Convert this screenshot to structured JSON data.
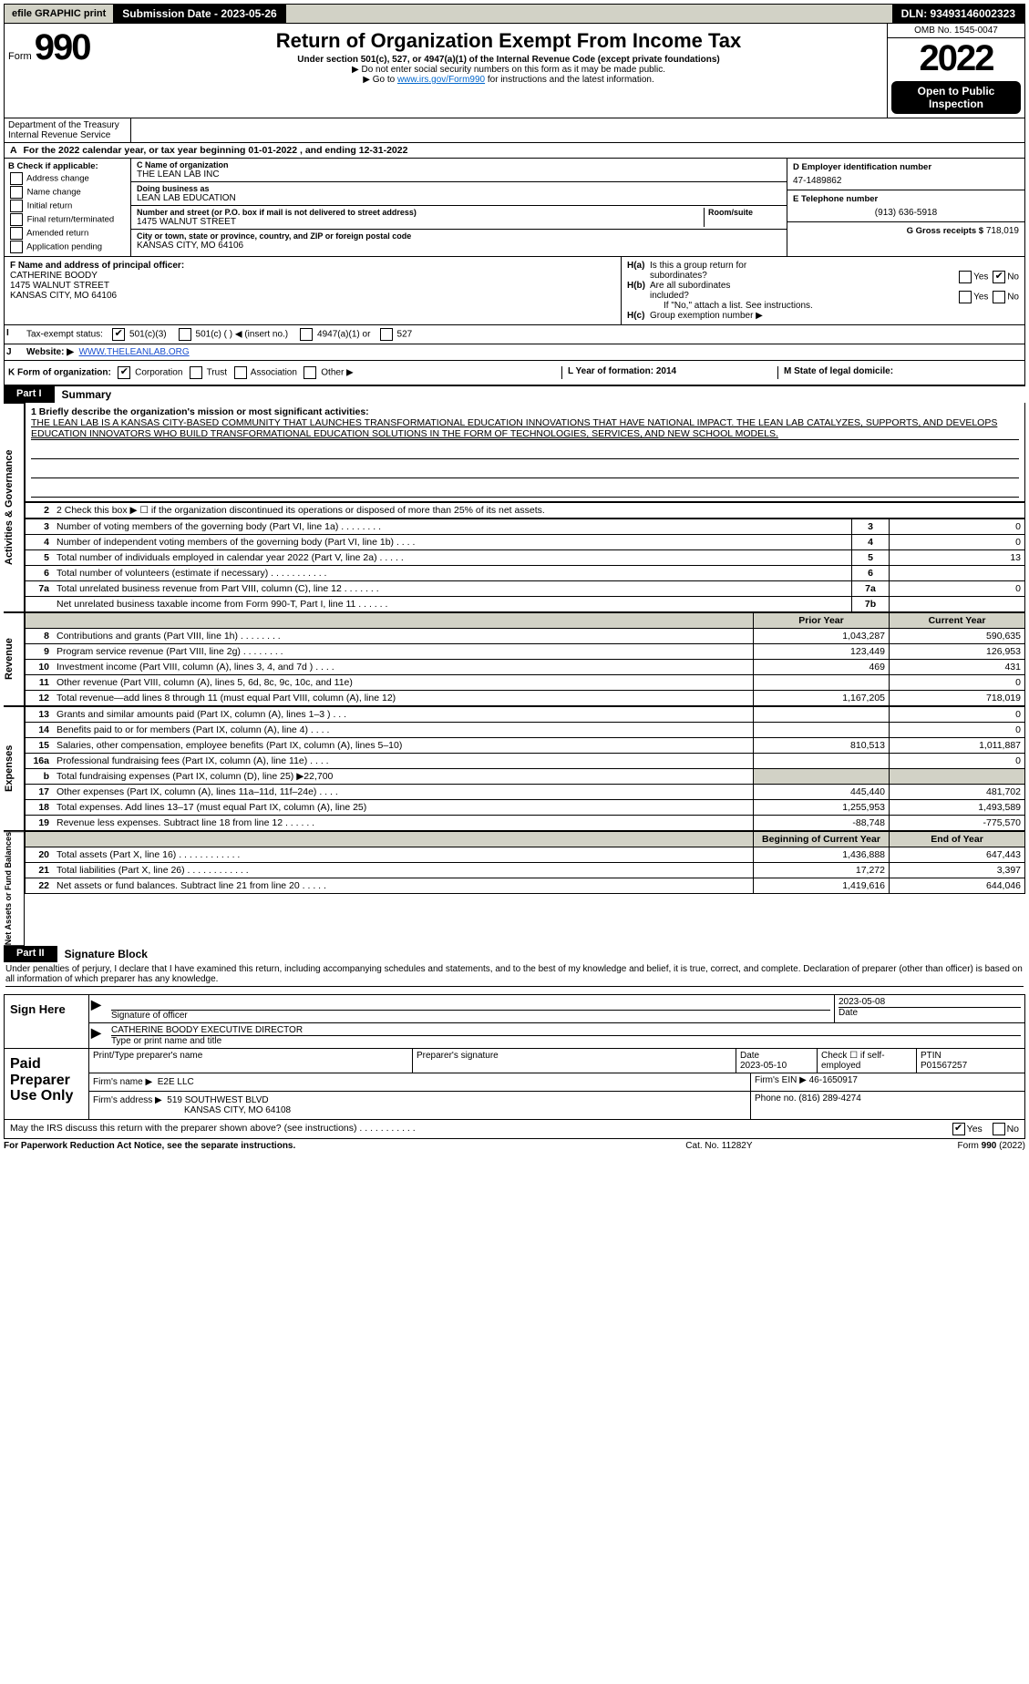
{
  "topbar": {
    "efile": "efile GRAPHIC print",
    "sub_label": "Submission Date - 2023-05-26",
    "dln_label": "DLN: 93493146002323"
  },
  "header": {
    "form_word": "Form",
    "form_num": "990",
    "title": "Return of Organization Exempt From Income Tax",
    "subtitle": "Under section 501(c), 527, or 4947(a)(1) of the Internal Revenue Code (except private foundations)",
    "note1": "▶ Do not enter social security numbers on this form as it may be made public.",
    "note2_pre": "▶ Go to ",
    "note2_link": "www.irs.gov/Form990",
    "note2_post": " for instructions and the latest information.",
    "omb": "OMB No. 1545-0047",
    "year": "2022",
    "public": "Open to Public Inspection",
    "dept": "Department of the Treasury",
    "irs": "Internal Revenue Service"
  },
  "a": {
    "line": "For the 2022 calendar year, or tax year beginning 01-01-2022    , and ending 12-31-2022",
    "a_label": "A"
  },
  "b": {
    "hdr": "B Check if applicable:",
    "opts": [
      "Address change",
      "Name change",
      "Initial return",
      "Final return/terminated",
      "Amended return",
      "Application pending"
    ]
  },
  "c": {
    "name_lbl": "C Name of organization",
    "name": "THE LEAN LAB INC",
    "dba_lbl": "Doing business as",
    "dba": "LEAN LAB EDUCATION",
    "addr_lbl": "Number and street (or P.O. box if mail is not delivered to street address)",
    "room_lbl": "Room/suite",
    "addr": "1475 WALNUT STREET",
    "city_lbl": "City or town, state or province, country, and ZIP or foreign postal code",
    "city": "KANSAS CITY, MO  64106"
  },
  "d": {
    "lbl": "D Employer identification number",
    "val": "47-1489862"
  },
  "e": {
    "lbl": "E Telephone number",
    "val": "(913) 636-5918"
  },
  "g": {
    "lbl": "G Gross receipts $",
    "val": "718,019"
  },
  "f": {
    "lbl": "F  Name and address of principal officer:",
    "name": "CATHERINE BOODY",
    "addr1": "1475 WALNUT STREET",
    "addr2": "KANSAS CITY, MO  64106"
  },
  "h": {
    "a_lbl": "H(a)  Is this a group return for subordinates?",
    "yes": "Yes",
    "no": "No",
    "b_lbl": "H(b)  Are all subordinates included?",
    "b_note": "If \"No,\" attach a list. See instructions.",
    "c_lbl": "H(c)  Group exemption number ▶"
  },
  "i": {
    "lbl": "Tax-exempt status:",
    "o1": "501(c)(3)",
    "o2": "501(c) (   ) ◀ (insert no.)",
    "o3": "4947(a)(1) or",
    "o4": "527"
  },
  "j": {
    "lbl": "Website: ▶",
    "val": "WWW.THELEANLAB.ORG"
  },
  "k": {
    "lbl": "K Form of organization:",
    "opts": [
      "Corporation",
      "Trust",
      "Association",
      "Other ▶"
    ]
  },
  "l": {
    "lbl": "L Year of formation: 2014"
  },
  "m": {
    "lbl": "M State of legal domicile:"
  },
  "part1": {
    "tab": "Part I",
    "title": "Summary",
    "q1_lbl": "1  Briefly describe the organization's mission or most significant activities:",
    "q1_text": "THE LEAN LAB IS A KANSAS CITY-BASED COMMUNITY THAT LAUNCHES TRANSFORMATIONAL EDUCATION INNOVATIONS THAT HAVE NATIONAL IMPACT. THE LEAN LAB CATALYZES, SUPPORTS, AND DEVELOPS EDUCATION INNOVATORS WHO BUILD TRANSFORMATIONAL EDUCATION SOLUTIONS IN THE FORM OF TECHNOLOGIES, SERVICES, AND NEW SCHOOL MODELS.",
    "q2": "2  Check this box ▶ ☐  if the organization discontinued its operations or disposed of more than 25% of its net assets.",
    "rows_gov": [
      {
        "n": "3",
        "d": "Number of voting members of the governing body (Part VI, line 1a)   .    .    .    .    .    .    .    .",
        "box": "3",
        "v": "0"
      },
      {
        "n": "4",
        "d": "Number of independent voting members of the governing body (Part VI, line 1b)    .    .    .    .",
        "box": "4",
        "v": "0"
      },
      {
        "n": "5",
        "d": "Total number of individuals employed in calendar year 2022 (Part V, line 2a)   .    .    .    .    .",
        "box": "5",
        "v": "13"
      },
      {
        "n": "6",
        "d": "Total number of volunteers (estimate if necessary)    .    .    .    .    .    .    .    .    .    .    .",
        "box": "6",
        "v": ""
      },
      {
        "n": "7a",
        "d": "Total unrelated business revenue from Part VIII, column (C), line 12   .    .    .    .    .    .    .",
        "box": "7a",
        "v": "0"
      },
      {
        "n": "",
        "d": "Net unrelated business taxable income from Form 990-T, Part I, line 11    .    .    .    .    .    .",
        "box": "7b",
        "v": ""
      }
    ],
    "hdr_prior": "Prior Year",
    "hdr_curr": "Current Year",
    "side_gov": "Activities & Governance",
    "side_rev": "Revenue",
    "side_exp": "Expenses",
    "side_net": "Net Assets or Fund Balances",
    "rows_rev": [
      {
        "n": "8",
        "d": "Contributions and grants (Part VIII, line 1h)    .    .    .    .    .    .    .    .",
        "p": "1,043,287",
        "c": "590,635"
      },
      {
        "n": "9",
        "d": "Program service revenue (Part VIII, line 2g)   .    .    .    .    .    .    .    .",
        "p": "123,449",
        "c": "126,953"
      },
      {
        "n": "10",
        "d": "Investment income (Part VIII, column (A), lines 3, 4, and 7d )   .    .    .    .",
        "p": "469",
        "c": "431"
      },
      {
        "n": "11",
        "d": "Other revenue (Part VIII, column (A), lines 5, 6d, 8c, 9c, 10c, and 11e)",
        "p": "",
        "c": "0"
      },
      {
        "n": "12",
        "d": "Total revenue—add lines 8 through 11 (must equal Part VIII, column (A), line 12)",
        "p": "1,167,205",
        "c": "718,019"
      }
    ],
    "rows_exp": [
      {
        "n": "13",
        "d": "Grants and similar amounts paid (Part IX, column (A), lines 1–3 )   .    .    .",
        "p": "",
        "c": "0"
      },
      {
        "n": "14",
        "d": "Benefits paid to or for members (Part IX, column (A), line 4)   .    .    .    .",
        "p": "",
        "c": "0"
      },
      {
        "n": "15",
        "d": "Salaries, other compensation, employee benefits (Part IX, column (A), lines 5–10)",
        "p": "810,513",
        "c": "1,011,887"
      },
      {
        "n": "16a",
        "d": "Professional fundraising fees (Part IX, column (A), line 11e)   .    .    .    .",
        "p": "",
        "c": "0"
      },
      {
        "n": "b",
        "d": "Total fundraising expenses (Part IX, column (D), line 25) ▶22,700",
        "p": "SHADE",
        "c": "SHADE"
      },
      {
        "n": "17",
        "d": "Other expenses (Part IX, column (A), lines 11a–11d, 11f–24e)   .    .    .    .",
        "p": "445,440",
        "c": "481,702"
      },
      {
        "n": "18",
        "d": "Total expenses. Add lines 13–17 (must equal Part IX, column (A), line 25)",
        "p": "1,255,953",
        "c": "1,493,589"
      },
      {
        "n": "19",
        "d": "Revenue less expenses. Subtract line 18 from line 12   .    .    .    .    .    .",
        "p": "-88,748",
        "c": "-775,570"
      }
    ],
    "hdr_beg": "Beginning of Current Year",
    "hdr_end": "End of Year",
    "rows_net": [
      {
        "n": "20",
        "d": "Total assets (Part X, line 16)   .    .    .    .    .    .    .    .    .    .    .    .",
        "p": "1,436,888",
        "c": "647,443"
      },
      {
        "n": "21",
        "d": "Total liabilities (Part X, line 26)   .    .    .    .    .    .    .    .    .    .    .    .",
        "p": "17,272",
        "c": "3,397"
      },
      {
        "n": "22",
        "d": "Net assets or fund balances. Subtract line 21 from line 20   .    .    .    .    .",
        "p": "1,419,616",
        "c": "644,046"
      }
    ]
  },
  "part2": {
    "tab": "Part II",
    "title": "Signature Block",
    "decl": "Under penalties of perjury, I declare that I have examined this return, including accompanying schedules and statements, and to the best of my knowledge and belief, it is true, correct, and complete. Declaration of preparer (other than officer) is based on all information of which preparer has any knowledge."
  },
  "sign": {
    "here": "Sign Here",
    "sig_lbl": "Signature of officer",
    "date_lbl": "Date",
    "date": "2023-05-08",
    "name": "CATHERINE BOODY  EXECUTIVE DIRECTOR",
    "name_lbl": "Type or print name and title"
  },
  "paid": {
    "here": "Paid Preparer Use Only",
    "r1": {
      "c1": "Print/Type preparer's name",
      "c2": "Preparer's signature",
      "c3": "Date",
      "c3v": "2023-05-10",
      "c4": "Check ☐ if self-employed",
      "c5": "PTIN",
      "c5v": "P01567257"
    },
    "r2": {
      "lbl": "Firm's name    ▶",
      "val": "E2E LLC",
      "ein_lbl": "Firm's EIN ▶",
      "ein": "46-1650917"
    },
    "r3": {
      "lbl": "Firm's address ▶",
      "val": "519 SOUTHWEST BLVD",
      "val2": "KANSAS CITY, MO  64108",
      "ph_lbl": "Phone no.",
      "ph": "(816) 289-4274"
    }
  },
  "discuss": {
    "q": "May the IRS discuss this return with the preparer shown above? (see instructions)    .    .    .    .    .    .    .    .    .    .    .",
    "yes": "Yes",
    "no": "No"
  },
  "footer": {
    "l": "For Paperwork Reduction Act Notice, see the separate instructions.",
    "m": "Cat. No. 11282Y",
    "r": "Form 990 (2022)"
  }
}
